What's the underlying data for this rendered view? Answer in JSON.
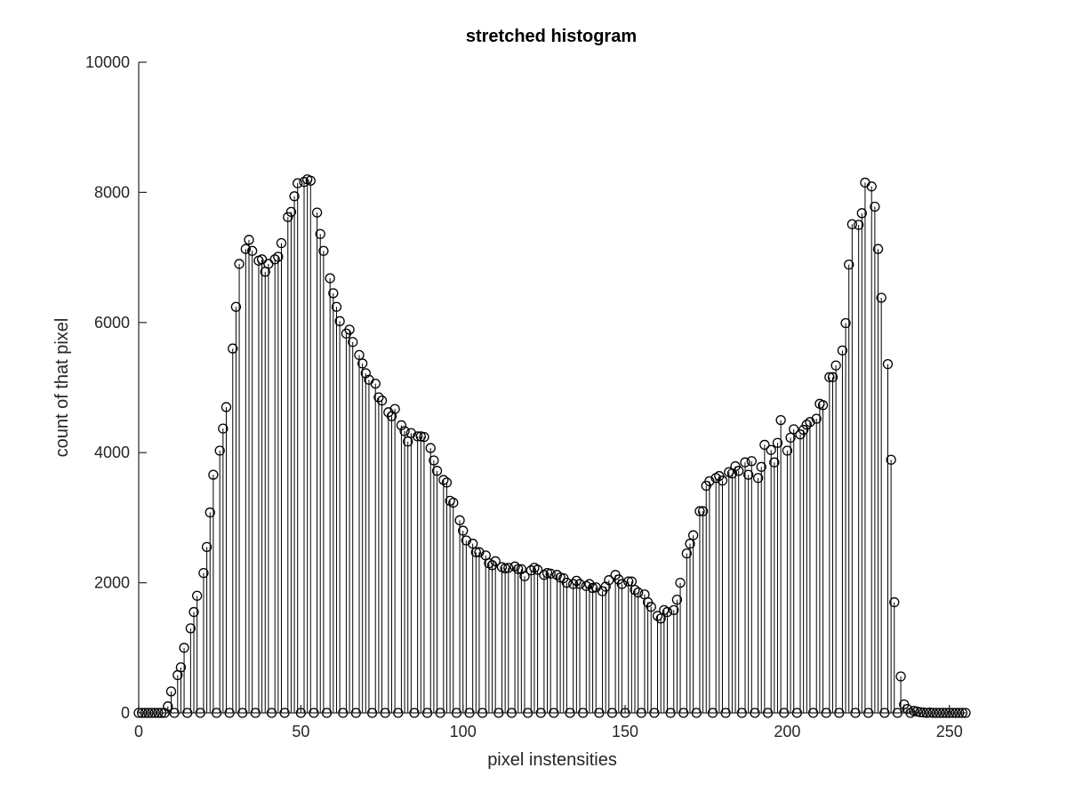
{
  "chart_data": {
    "type": "stem",
    "title": "stretched histogram",
    "xlabel": "pixel instensities",
    "ylabel": "count of that pixel",
    "xlim": [
      0,
      255
    ],
    "ylim": [
      0,
      10000
    ],
    "xticks": [
      0,
      50,
      100,
      150,
      200,
      250
    ],
    "yticks": [
      0,
      2000,
      4000,
      6000,
      8000,
      10000
    ],
    "grid": false,
    "marker": "circle",
    "points": [
      [
        0,
        0
      ],
      [
        1,
        0
      ],
      [
        2,
        0
      ],
      [
        3,
        0
      ],
      [
        4,
        0
      ],
      [
        5,
        0
      ],
      [
        6,
        0
      ],
      [
        7,
        0
      ],
      [
        8,
        0
      ],
      [
        9,
        100
      ],
      [
        10,
        330
      ],
      [
        11,
        0
      ],
      [
        12,
        580
      ],
      [
        13,
        700
      ],
      [
        14,
        1000
      ],
      [
        15,
        0
      ],
      [
        16,
        1300
      ],
      [
        17,
        1550
      ],
      [
        18,
        1800
      ],
      [
        19,
        0
      ],
      [
        20,
        2150
      ],
      [
        21,
        2550
      ],
      [
        22,
        3080
      ],
      [
        23,
        3660
      ],
      [
        24,
        0
      ],
      [
        25,
        4030
      ],
      [
        26,
        4370
      ],
      [
        27,
        4700
      ],
      [
        28,
        0
      ],
      [
        29,
        5600
      ],
      [
        30,
        6240
      ],
      [
        31,
        6900
      ],
      [
        32,
        0
      ],
      [
        33,
        7130
      ],
      [
        34,
        7270
      ],
      [
        35,
        7100
      ],
      [
        36,
        0
      ],
      [
        37,
        6950
      ],
      [
        38,
        6970
      ],
      [
        39,
        6780
      ],
      [
        40,
        6900
      ],
      [
        41,
        0
      ],
      [
        42,
        6970
      ],
      [
        43,
        7010
      ],
      [
        44,
        7220
      ],
      [
        45,
        0
      ],
      [
        46,
        7620
      ],
      [
        47,
        7700
      ],
      [
        48,
        7940
      ],
      [
        49,
        8140
      ],
      [
        50,
        0
      ],
      [
        51,
        8160
      ],
      [
        52,
        8200
      ],
      [
        53,
        8180
      ],
      [
        54,
        0
      ],
      [
        55,
        7690
      ],
      [
        56,
        7360
      ],
      [
        57,
        7100
      ],
      [
        58,
        0
      ],
      [
        59,
        6680
      ],
      [
        60,
        6450
      ],
      [
        61,
        6240
      ],
      [
        62,
        6020
      ],
      [
        63,
        0
      ],
      [
        64,
        5830
      ],
      [
        65,
        5890
      ],
      [
        66,
        5700
      ],
      [
        67,
        0
      ],
      [
        68,
        5500
      ],
      [
        69,
        5370
      ],
      [
        70,
        5220
      ],
      [
        71,
        5120
      ],
      [
        72,
        0
      ],
      [
        73,
        5060
      ],
      [
        74,
        4850
      ],
      [
        75,
        4800
      ],
      [
        76,
        0
      ],
      [
        77,
        4620
      ],
      [
        78,
        4560
      ],
      [
        79,
        4670
      ],
      [
        80,
        0
      ],
      [
        81,
        4420
      ],
      [
        82,
        4330
      ],
      [
        83,
        4170
      ],
      [
        84,
        4300
      ],
      [
        85,
        0
      ],
      [
        86,
        4250
      ],
      [
        87,
        4250
      ],
      [
        88,
        4240
      ],
      [
        89,
        0
      ],
      [
        90,
        4070
      ],
      [
        91,
        3880
      ],
      [
        92,
        3720
      ],
      [
        93,
        0
      ],
      [
        94,
        3580
      ],
      [
        95,
        3540
      ],
      [
        96,
        3260
      ],
      [
        97,
        3230
      ],
      [
        98,
        0
      ],
      [
        99,
        2960
      ],
      [
        100,
        2800
      ],
      [
        101,
        2650
      ],
      [
        102,
        0
      ],
      [
        103,
        2600
      ],
      [
        104,
        2470
      ],
      [
        105,
        2470
      ],
      [
        106,
        0
      ],
      [
        107,
        2420
      ],
      [
        108,
        2300
      ],
      [
        109,
        2270
      ],
      [
        110,
        2330
      ],
      [
        111,
        0
      ],
      [
        112,
        2240
      ],
      [
        113,
        2220
      ],
      [
        114,
        2230
      ],
      [
        115,
        0
      ],
      [
        116,
        2250
      ],
      [
        117,
        2210
      ],
      [
        118,
        2210
      ],
      [
        119,
        2100
      ],
      [
        120,
        0
      ],
      [
        121,
        2190
      ],
      [
        122,
        2230
      ],
      [
        123,
        2200
      ],
      [
        124,
        0
      ],
      [
        125,
        2120
      ],
      [
        126,
        2150
      ],
      [
        127,
        2140
      ],
      [
        128,
        0
      ],
      [
        129,
        2120
      ],
      [
        130,
        2080
      ],
      [
        131,
        2070
      ],
      [
        132,
        2000
      ],
      [
        133,
        0
      ],
      [
        134,
        1980
      ],
      [
        135,
        2030
      ],
      [
        136,
        1980
      ],
      [
        137,
        0
      ],
      [
        138,
        1950
      ],
      [
        139,
        1980
      ],
      [
        140,
        1920
      ],
      [
        141,
        1930
      ],
      [
        142,
        0
      ],
      [
        143,
        1870
      ],
      [
        144,
        1940
      ],
      [
        145,
        2040
      ],
      [
        146,
        0
      ],
      [
        147,
        2120
      ],
      [
        148,
        2050
      ],
      [
        149,
        1980
      ],
      [
        150,
        0
      ],
      [
        151,
        2020
      ],
      [
        152,
        2020
      ],
      [
        153,
        1890
      ],
      [
        154,
        1850
      ],
      [
        155,
        0
      ],
      [
        156,
        1820
      ],
      [
        157,
        1700
      ],
      [
        158,
        1630
      ],
      [
        159,
        0
      ],
      [
        160,
        1490
      ],
      [
        161,
        1450
      ],
      [
        162,
        1580
      ],
      [
        163,
        1550
      ],
      [
        164,
        0
      ],
      [
        165,
        1580
      ],
      [
        166,
        1740
      ],
      [
        167,
        2000
      ],
      [
        168,
        0
      ],
      [
        169,
        2450
      ],
      [
        170,
        2600
      ],
      [
        171,
        2730
      ],
      [
        172,
        0
      ],
      [
        173,
        3100
      ],
      [
        174,
        3100
      ],
      [
        175,
        3490
      ],
      [
        176,
        3560
      ],
      [
        177,
        0
      ],
      [
        178,
        3610
      ],
      [
        179,
        3640
      ],
      [
        180,
        3570
      ],
      [
        181,
        0
      ],
      [
        182,
        3700
      ],
      [
        183,
        3680
      ],
      [
        184,
        3790
      ],
      [
        185,
        3720
      ],
      [
        186,
        0
      ],
      [
        187,
        3850
      ],
      [
        188,
        3660
      ],
      [
        189,
        3870
      ],
      [
        190,
        0
      ],
      [
        191,
        3610
      ],
      [
        192,
        3780
      ],
      [
        193,
        4120
      ],
      [
        194,
        0
      ],
      [
        195,
        4040
      ],
      [
        196,
        3850
      ],
      [
        197,
        4150
      ],
      [
        198,
        4500
      ],
      [
        199,
        0
      ],
      [
        200,
        4030
      ],
      [
        201,
        4230
      ],
      [
        202,
        4360
      ],
      [
        203,
        0
      ],
      [
        204,
        4280
      ],
      [
        205,
        4350
      ],
      [
        206,
        4430
      ],
      [
        207,
        4470
      ],
      [
        208,
        0
      ],
      [
        209,
        4520
      ],
      [
        210,
        4750
      ],
      [
        211,
        4730
      ],
      [
        212,
        0
      ],
      [
        213,
        5160
      ],
      [
        214,
        5160
      ],
      [
        215,
        5340
      ],
      [
        216,
        0
      ],
      [
        217,
        5570
      ],
      [
        218,
        5990
      ],
      [
        219,
        6890
      ],
      [
        220,
        7510
      ],
      [
        221,
        0
      ],
      [
        222,
        7500
      ],
      [
        223,
        7680
      ],
      [
        224,
        8150
      ],
      [
        225,
        0
      ],
      [
        226,
        8090
      ],
      [
        227,
        7780
      ],
      [
        228,
        7130
      ],
      [
        229,
        6380
      ],
      [
        230,
        0
      ],
      [
        231,
        5360
      ],
      [
        232,
        3890
      ],
      [
        233,
        1700
      ],
      [
        234,
        0
      ],
      [
        235,
        560
      ],
      [
        236,
        130
      ],
      [
        237,
        60
      ],
      [
        238,
        0
      ],
      [
        239,
        30
      ],
      [
        240,
        20
      ],
      [
        241,
        10
      ],
      [
        242,
        5
      ],
      [
        243,
        0
      ],
      [
        244,
        5
      ],
      [
        245,
        0
      ],
      [
        246,
        0
      ],
      [
        247,
        0
      ],
      [
        248,
        0
      ],
      [
        249,
        0
      ],
      [
        250,
        0
      ],
      [
        251,
        0
      ],
      [
        252,
        0
      ],
      [
        253,
        0
      ],
      [
        254,
        0
      ],
      [
        255,
        0
      ]
    ]
  }
}
